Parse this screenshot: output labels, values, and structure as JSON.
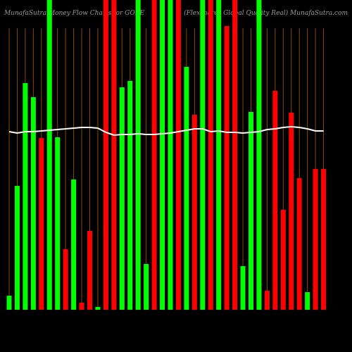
{
  "chart_data": {
    "type": "bar",
    "title": "MunafaSutra  Money Flow  Charts for GORE",
    "subtitle": "(Flexshares Global Quality Real) MunafaSutra.com",
    "ylim": [
      0,
      440
    ],
    "series": [
      {
        "name": "Money Flow",
        "type": "bar",
        "values": [
          20,
          176,
          322,
          302,
          244,
          440,
          245,
          86,
          185,
          10,
          112,
          4,
          440,
          440,
          316,
          325,
          440,
          65,
          440,
          440,
          440,
          440,
          345,
          277,
          440,
          440,
          440,
          403,
          440,
          62,
          281,
          440,
          27,
          311,
          142,
          280,
          187,
          25,
          200,
          200
        ],
        "colors": [
          "#00ff00",
          "#00ff00",
          "#00ff00",
          "#00ff00",
          "#ff0000",
          "#00ff00",
          "#00ff00",
          "#ff0000",
          "#00ff00",
          "#ff0000",
          "#ff0000",
          "#00ff00",
          "#ff0000",
          "#ff0000",
          "#00ff00",
          "#00ff00",
          "#00ff00",
          "#00ff00",
          "#ff0000",
          "#00ff00",
          "#00ff00",
          "#ff0000",
          "#00ff00",
          "#ff0000",
          "#00ff00",
          "#ff0000",
          "#00ff00",
          "#ff0000",
          "#ff0000",
          "#00ff00",
          "#00ff00",
          "#00ff00",
          "#ff0000",
          "#ff0000",
          "#ff0000",
          "#ff0000",
          "#ff0000",
          "#00ff00",
          "#ff0000",
          "#ff0000"
        ]
      },
      {
        "name": "Price",
        "type": "line",
        "color": "#ffffff",
        "values": [
          253,
          251,
          253,
          253,
          254,
          255,
          256,
          257,
          258,
          259,
          259,
          258,
          252,
          248,
          249,
          249,
          250,
          249,
          249,
          250,
          251,
          253,
          255,
          257,
          257,
          253,
          254,
          252,
          252,
          251,
          252,
          253,
          256,
          257,
          259,
          260,
          259,
          257,
          254,
          254
        ]
      }
    ]
  }
}
